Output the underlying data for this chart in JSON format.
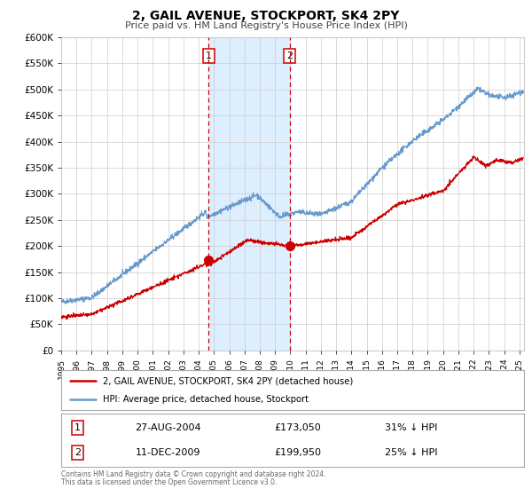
{
  "title": "2, GAIL AVENUE, STOCKPORT, SK4 2PY",
  "subtitle": "Price paid vs. HM Land Registry's House Price Index (HPI)",
  "ylim": [
    0,
    600000
  ],
  "yticks": [
    0,
    50000,
    100000,
    150000,
    200000,
    250000,
    300000,
    350000,
    400000,
    450000,
    500000,
    550000,
    600000
  ],
  "xlim_start": 1995.0,
  "xlim_end": 2025.3,
  "purchase1_date": 2004.65,
  "purchase1_price": 173050,
  "purchase1_label": "27-AUG-2004",
  "purchase1_price_str": "£173,050",
  "purchase1_pct": "31% ↓ HPI",
  "purchase2_date": 2009.95,
  "purchase2_price": 199950,
  "purchase2_label": "11-DEC-2009",
  "purchase2_price_str": "£199,950",
  "purchase2_pct": "25% ↓ HPI",
  "line1_color": "#cc0000",
  "line2_color": "#6699cc",
  "marker_color": "#cc0000",
  "shade_color": "#ddeeff",
  "vline_color": "#cc0000",
  "grid_color": "#cccccc",
  "background_color": "#ffffff",
  "legend1_label": "2, GAIL AVENUE, STOCKPORT, SK4 2PY (detached house)",
  "legend2_label": "HPI: Average price, detached house, Stockport",
  "footer_line1": "Contains HM Land Registry data © Crown copyright and database right 2024.",
  "footer_line2": "This data is licensed under the Open Government Licence v3.0."
}
